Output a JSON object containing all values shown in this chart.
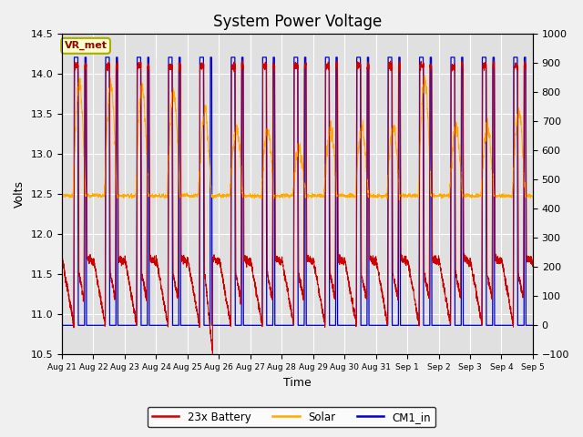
{
  "title": "System Power Voltage",
  "xlabel": "Time",
  "ylabel": "Volts",
  "ylim_left": [
    10.5,
    14.5
  ],
  "ylim_right": [
    -100,
    1000
  ],
  "yticks_left": [
    10.5,
    11.0,
    11.5,
    12.0,
    12.5,
    13.0,
    13.5,
    14.0,
    14.5
  ],
  "yticks_right": [
    -100,
    0,
    100,
    200,
    300,
    400,
    500,
    600,
    700,
    800,
    900,
    1000
  ],
  "x_tick_labels": [
    "Aug 21",
    "Aug 22",
    "Aug 23",
    "Aug 24",
    "Aug 25",
    "Aug 26",
    "Aug 27",
    "Aug 28",
    "Aug 29",
    "Aug 30",
    "Aug 31",
    "Sep 1",
    "Sep 2",
    "Sep 3",
    "Sep 4",
    "Sep 5"
  ],
  "legend_labels": [
    "23x Battery",
    "Solar",
    "CM1_in"
  ],
  "legend_colors": [
    "#cc0000",
    "#ffaa00",
    "#0000cc"
  ],
  "annotation_text": "VR_met",
  "annotation_bg": "#ffffcc",
  "annotation_border": "#aaaa00",
  "n_days": 15,
  "ppd": 288
}
